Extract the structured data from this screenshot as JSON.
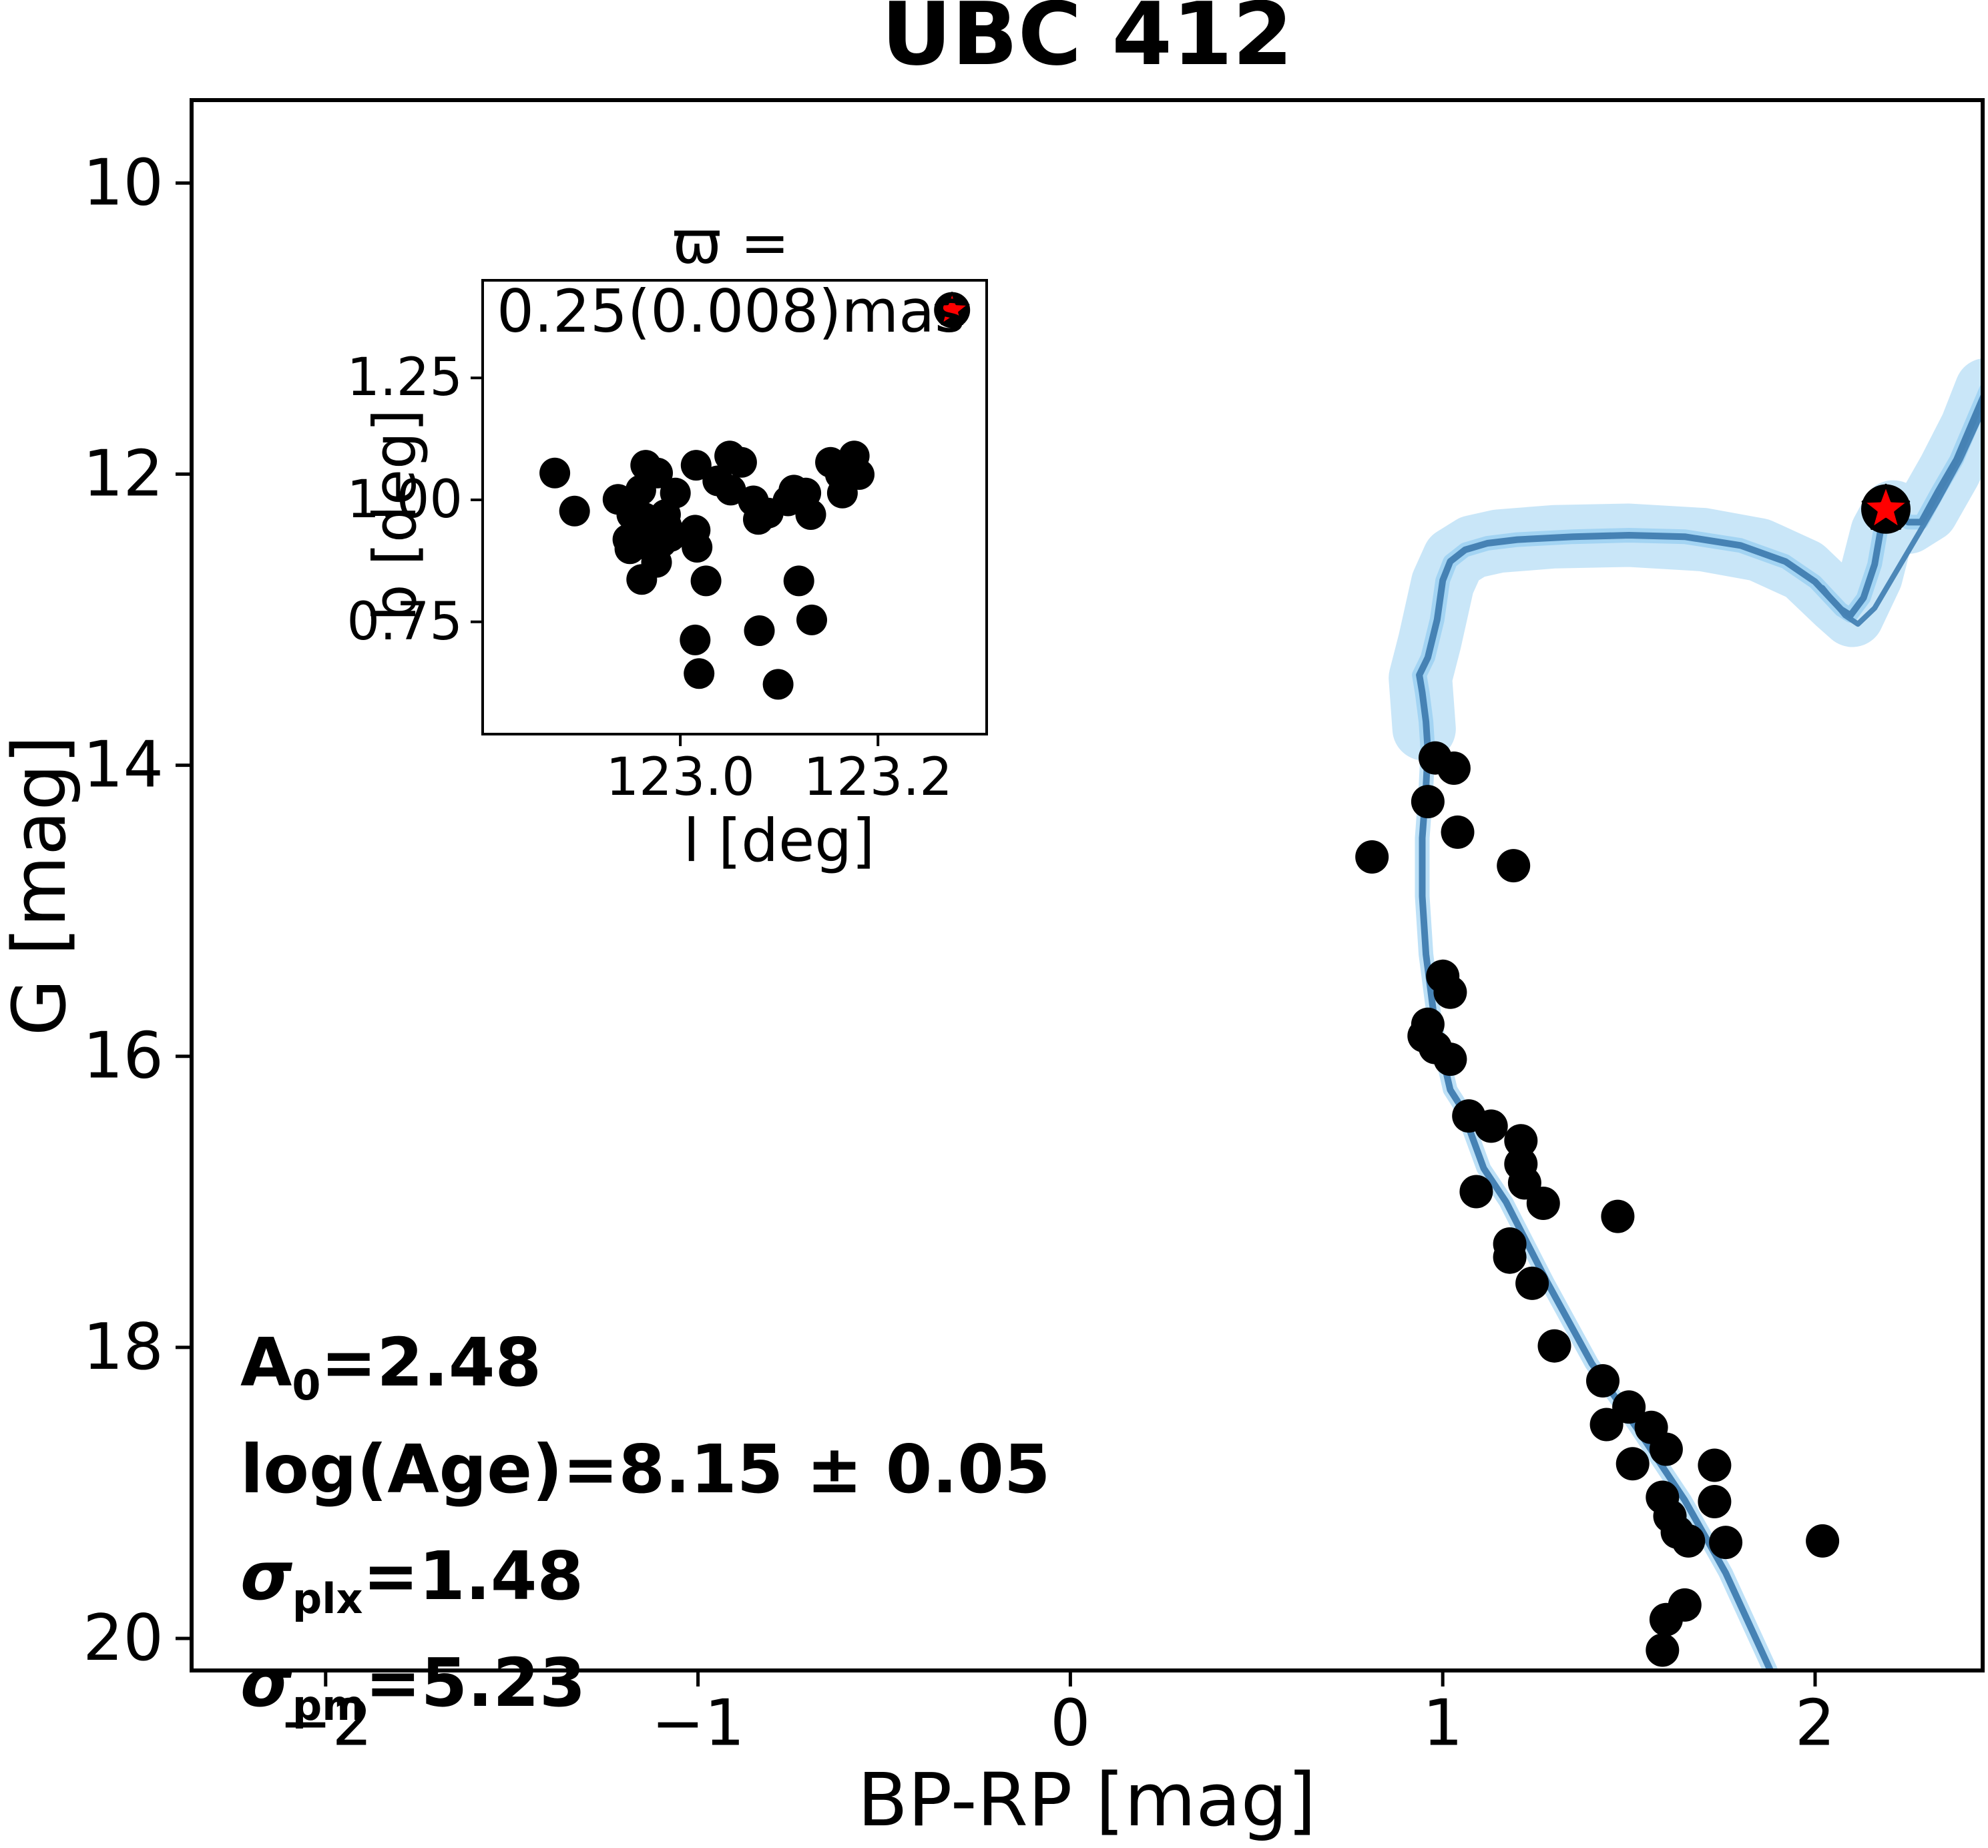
{
  "title": "UBC 412",
  "colors": {
    "isochrone": "#4682b4",
    "band": "#7ec3ef",
    "marker": "#000000",
    "star_fill": "#ff0000",
    "star_edge": "#000000",
    "axis": "#000000",
    "background": "#ffffff"
  },
  "annotations": [
    {
      "pre": "A",
      "sub": "0",
      "rest": "=2.48",
      "cls": "upright"
    },
    {
      "pre": "log(Age)",
      "sub": "",
      "rest": "=8.15 ± 0.05",
      "cls": "upright"
    },
    {
      "pre": "σ",
      "sub": "plx",
      "rest": "=1.48",
      "cls": "italic"
    },
    {
      "pre": "σ",
      "sub": "pm",
      "rest": "=5.23",
      "cls": "italic"
    }
  ],
  "chart_data": {
    "type": "scatter",
    "title": "UBC 412",
    "xlabel": "BP-RP [mag]",
    "ylabel": "G [mag]",
    "xlim": [
      -2.36,
      2.45
    ],
    "ylim": [
      20.22,
      9.43
    ],
    "grid": false,
    "x_ticks": [
      {
        "v": -2,
        "label": "−2"
      },
      {
        "v": -1,
        "label": "−1"
      },
      {
        "v": 0,
        "label": "0"
      },
      {
        "v": 1,
        "label": "1"
      },
      {
        "v": 2,
        "label": "2"
      }
    ],
    "y_ticks": [
      {
        "v": 10,
        "label": "10"
      },
      {
        "v": 12,
        "label": "12"
      },
      {
        "v": 14,
        "label": "14"
      },
      {
        "v": 16,
        "label": "16"
      },
      {
        "v": 18,
        "label": "18"
      },
      {
        "v": 20,
        "label": "20"
      }
    ],
    "cluster_members": [
      [
        0.98,
        13.95
      ],
      [
        1.03,
        14.02
      ],
      [
        0.96,
        14.25
      ],
      [
        1.04,
        14.46
      ],
      [
        0.81,
        14.63
      ],
      [
        1.19,
        14.69
      ],
      [
        1.0,
        15.45
      ],
      [
        1.02,
        15.56
      ],
      [
        0.96,
        15.78
      ],
      [
        0.95,
        15.86
      ],
      [
        0.98,
        15.94
      ],
      [
        1.02,
        16.02
      ],
      [
        1.07,
        16.41
      ],
      [
        1.13,
        16.48
      ],
      [
        1.21,
        16.58
      ],
      [
        1.21,
        16.74
      ],
      [
        1.09,
        16.93
      ],
      [
        1.22,
        16.87
      ],
      [
        1.27,
        17.01
      ],
      [
        1.47,
        17.1
      ],
      [
        1.18,
        17.29
      ],
      [
        1.18,
        17.38
      ],
      [
        1.24,
        17.56
      ],
      [
        1.3,
        17.99
      ],
      [
        1.43,
        18.23
      ],
      [
        1.5,
        18.41
      ],
      [
        1.44,
        18.53
      ],
      [
        1.56,
        18.55
      ],
      [
        1.6,
        18.7
      ],
      [
        1.51,
        18.8
      ],
      [
        1.73,
        18.81
      ],
      [
        1.59,
        19.03
      ],
      [
        1.73,
        19.06
      ],
      [
        1.61,
        19.16
      ],
      [
        1.63,
        19.27
      ],
      [
        1.66,
        19.33
      ],
      [
        1.76,
        19.34
      ],
      [
        2.02,
        19.33
      ],
      [
        1.65,
        19.77
      ],
      [
        1.6,
        19.87
      ],
      [
        1.59,
        20.08
      ],
      [
        2.19,
        12.24
      ]
    ],
    "red_star": [
      2.19,
      12.24
    ],
    "isochrone": {
      "path": [
        [
          1.88,
          20.22
        ],
        [
          1.76,
          19.55
        ],
        [
          1.65,
          19.05
        ],
        [
          1.52,
          18.55
        ],
        [
          1.4,
          18.11
        ],
        [
          1.28,
          17.55
        ],
        [
          1.17,
          17.0
        ],
        [
          1.11,
          16.77
        ],
        [
          1.05,
          16.35
        ],
        [
          1.02,
          16.23
        ],
        [
          0.98,
          15.79
        ],
        [
          0.955,
          15.3
        ],
        [
          0.945,
          14.9
        ],
        [
          0.945,
          14.5
        ],
        [
          0.955,
          14.15
        ],
        [
          0.96,
          13.9
        ],
        [
          0.955,
          13.7
        ],
        [
          0.945,
          13.5
        ],
        [
          0.937,
          13.38
        ],
        [
          0.96,
          13.26
        ],
        [
          0.985,
          13.0
        ],
        [
          1.0,
          12.73
        ],
        [
          1.02,
          12.6
        ],
        [
          1.06,
          12.52
        ],
        [
          1.12,
          12.475
        ],
        [
          1.2,
          12.45
        ],
        [
          1.35,
          12.43
        ],
        [
          1.5,
          12.42
        ],
        [
          1.65,
          12.43
        ],
        [
          1.8,
          12.49
        ],
        [
          1.92,
          12.6
        ],
        [
          2.0,
          12.74
        ],
        [
          2.07,
          12.93
        ],
        [
          2.095,
          12.97
        ],
        [
          2.13,
          12.85
        ],
        [
          2.16,
          12.62
        ],
        [
          2.175,
          12.4
        ],
        [
          2.19,
          12.27
        ],
        [
          2.22,
          12.25
        ],
        [
          2.25,
          12.33
        ],
        [
          2.285,
          12.33
        ],
        [
          2.33,
          12.12
        ],
        [
          2.38,
          11.9
        ],
        [
          2.43,
          11.6
        ],
        [
          2.46,
          11.42
        ]
      ],
      "upper_band": [
        [
          0.95,
          13.75
        ],
        [
          0.94,
          13.4
        ],
        [
          0.965,
          13.15
        ],
        [
          1.0,
          12.75
        ],
        [
          1.03,
          12.58
        ],
        [
          1.08,
          12.5
        ],
        [
          1.15,
          12.46
        ],
        [
          1.3,
          12.43
        ],
        [
          1.5,
          12.42
        ],
        [
          1.7,
          12.45
        ],
        [
          1.85,
          12.52
        ],
        [
          1.97,
          12.66
        ],
        [
          2.06,
          12.88
        ],
        [
          2.1,
          12.97
        ],
        [
          2.15,
          12.7
        ],
        [
          2.18,
          12.4
        ],
        [
          2.21,
          12.26
        ],
        [
          2.25,
          12.33
        ],
        [
          2.3,
          12.25
        ],
        [
          2.36,
          11.98
        ],
        [
          2.42,
          11.68
        ],
        [
          2.46,
          11.42
        ]
      ],
      "secondary": [
        [
          2.02,
          12.78
        ],
        [
          2.08,
          12.97
        ],
        [
          2.115,
          13.03
        ],
        [
          2.16,
          12.92
        ],
        [
          2.22,
          12.66
        ],
        [
          2.28,
          12.4
        ],
        [
          2.33,
          12.18
        ],
        [
          2.39,
          11.9
        ],
        [
          2.44,
          11.62
        ],
        [
          2.465,
          11.45
        ]
      ]
    },
    "inset": {
      "title": "ϖ = 0.25(0.008)mas",
      "xlabel": "l [deg]",
      "ylabel": "b [deg]",
      "xlim": [
        122.8,
        123.31
      ],
      "ylim": [
        0.52,
        1.45
      ],
      "x_ticks": [
        {
          "v": 123.0,
          "label": "123.0"
        },
        {
          "v": 123.2,
          "label": "123.2"
        }
      ],
      "y_ticks": [
        {
          "v": 0.75,
          "label": "0.75"
        },
        {
          "v": 1.0,
          "label": "1.00"
        },
        {
          "v": 1.25,
          "label": "1.25"
        }
      ],
      "members": [
        [
          122.873,
          1.055
        ],
        [
          122.893,
          0.977
        ],
        [
          122.937,
          1.001
        ],
        [
          122.96,
          1.02
        ],
        [
          122.965,
          1.071
        ],
        [
          122.977,
          1.055
        ],
        [
          122.995,
          1.014
        ],
        [
          123.016,
          1.071
        ],
        [
          123.038,
          1.039
        ],
        [
          123.05,
          1.09
        ],
        [
          123.062,
          1.077
        ],
        [
          123.051,
          1.02
        ],
        [
          123.074,
          0.998
        ],
        [
          123.079,
          0.96
        ],
        [
          123.089,
          0.973
        ],
        [
          123.109,
          0.998
        ],
        [
          123.115,
          1.02
        ],
        [
          123.127,
          1.014
        ],
        [
          123.132,
          0.97
        ],
        [
          123.152,
          1.077
        ],
        [
          123.162,
          1.052
        ],
        [
          123.164,
          1.014
        ],
        [
          123.176,
          1.09
        ],
        [
          123.181,
          1.052
        ],
        [
          122.951,
          0.97
        ],
        [
          122.957,
          0.951
        ],
        [
          122.964,
          0.963
        ],
        [
          122.968,
          0.944
        ],
        [
          122.974,
          0.957
        ],
        [
          122.979,
          0.944
        ],
        [
          122.985,
          0.97
        ],
        [
          122.986,
          0.947
        ],
        [
          122.947,
          0.919
        ],
        [
          122.961,
          0.91
        ],
        [
          122.971,
          0.916
        ],
        [
          122.981,
          0.913
        ],
        [
          122.99,
          0.925
        ],
        [
          122.949,
          0.9
        ],
        [
          123.015,
          0.938
        ],
        [
          123.017,
          0.903
        ],
        [
          122.976,
          0.872
        ],
        [
          122.961,
          0.837
        ],
        [
          123.026,
          0.834
        ],
        [
          123.12,
          0.834
        ],
        [
          123.133,
          0.754
        ],
        [
          123.08,
          0.732
        ],
        [
          123.015,
          0.713
        ],
        [
          123.019,
          0.644
        ],
        [
          123.099,
          0.622
        ]
      ],
      "red_star": [
        123.275,
        1.389
      ]
    }
  }
}
